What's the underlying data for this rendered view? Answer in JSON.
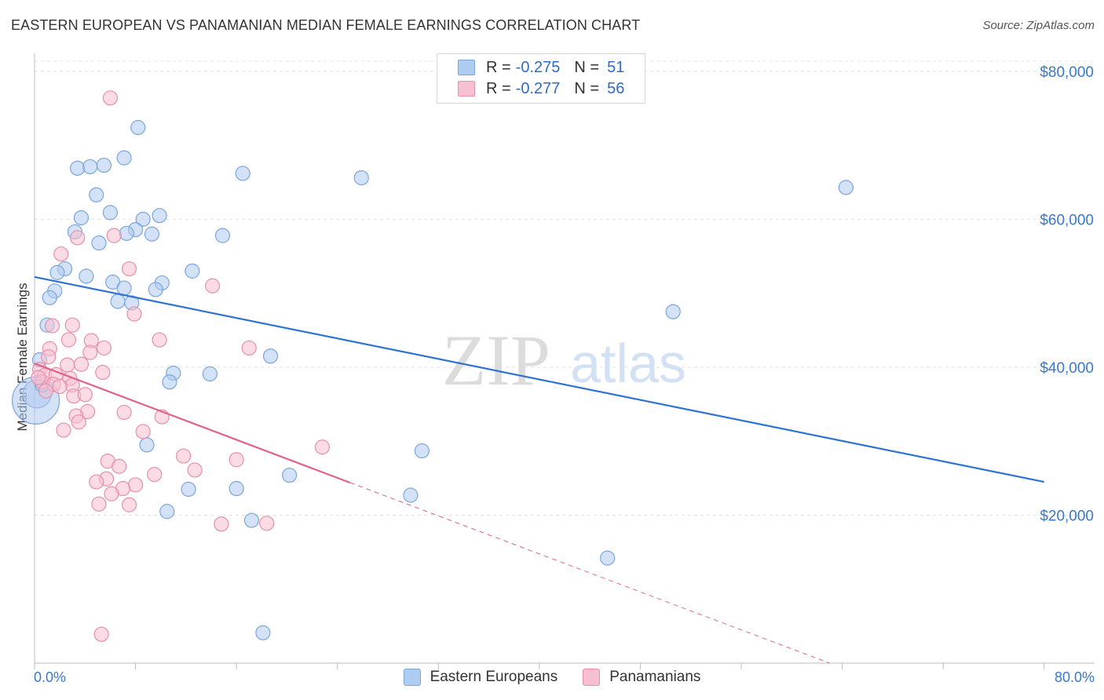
{
  "header": {
    "title": "EASTERN EUROPEAN VS PANAMANIAN MEDIAN FEMALE EARNINGS CORRELATION CHART",
    "source": "Source: ZipAtlas.com"
  },
  "legend_top": {
    "rows": [
      {
        "r_label": "R =",
        "r_value": "-0.275",
        "n_label": "N =",
        "n_value": "51"
      },
      {
        "r_label": "R =",
        "r_value": "-0.277",
        "n_label": "N =",
        "n_value": "56"
      }
    ]
  },
  "legend_bottom": {
    "items": [
      "Eastern Europeans",
      "Panamanians"
    ]
  },
  "colors": {
    "blue_fill": "#aecbf0",
    "blue_stroke": "#7aa6dd",
    "blue_line": "#2f73d0",
    "pink_fill": "#f7c0d0",
    "pink_stroke": "#e88fab",
    "pink_line": "#e0628d",
    "axis_text": "#3a78c9",
    "grid": "#e3e3e3",
    "watermark": "#dcdcdc"
  },
  "chart_data": {
    "type": "scatter",
    "title": "EASTERN EUROPEAN VS PANAMANIAN MEDIAN FEMALE EARNINGS CORRELATION CHART",
    "xlabel": "",
    "ylabel": "Median Female Earnings",
    "xlim": [
      0,
      84
    ],
    "ylim": [
      0,
      82000
    ],
    "x_tick_labels": [
      {
        "value": 0,
        "label": "0.0%"
      },
      {
        "value": 80,
        "label": "80.0%"
      }
    ],
    "y_tick_labels": [
      {
        "value": 20000,
        "label": "$20,000"
      },
      {
        "value": 40000,
        "label": "$40,000"
      },
      {
        "value": 60000,
        "label": "$60,000"
      },
      {
        "value": 80000,
        "label": "$80,000"
      }
    ],
    "watermark": {
      "zip": "ZIP",
      "atlas": "atlas"
    },
    "series": [
      {
        "name": "Eastern Europeans",
        "color": "blue",
        "trend": {
          "x": [
            0,
            80
          ],
          "y": [
            52200,
            24500
          ],
          "dashed_to": null
        },
        "points": [
          [
            8.2,
            72400
          ],
          [
            7.1,
            68300
          ],
          [
            3.4,
            66900
          ],
          [
            4.4,
            67100
          ],
          [
            5.5,
            67300
          ],
          [
            16.5,
            66200
          ],
          [
            25.9,
            65600
          ],
          [
            64.3,
            64300
          ],
          [
            4.9,
            63300
          ],
          [
            6.0,
            60900
          ],
          [
            3.7,
            60200
          ],
          [
            8.6,
            60000
          ],
          [
            9.9,
            60500
          ],
          [
            8.0,
            58600
          ],
          [
            3.2,
            58300
          ],
          [
            7.3,
            58100
          ],
          [
            9.3,
            58000
          ],
          [
            14.9,
            57800
          ],
          [
            5.1,
            56800
          ],
          [
            2.4,
            53300
          ],
          [
            12.5,
            53000
          ],
          [
            1.8,
            52800
          ],
          [
            4.1,
            52300
          ],
          [
            6.2,
            51500
          ],
          [
            10.1,
            51400
          ],
          [
            7.1,
            50700
          ],
          [
            9.6,
            50500
          ],
          [
            1.6,
            50300
          ],
          [
            1.2,
            49400
          ],
          [
            6.6,
            48900
          ],
          [
            7.7,
            48700
          ],
          [
            50.6,
            47500
          ],
          [
            1.0,
            45700
          ],
          [
            18.7,
            41500
          ],
          [
            0.4,
            41000
          ],
          [
            11.0,
            39200
          ],
          [
            13.9,
            39100
          ],
          [
            10.7,
            38000
          ],
          [
            0.2,
            36400
          ],
          [
            0.1,
            35500
          ],
          [
            8.9,
            29500
          ],
          [
            30.7,
            28700
          ],
          [
            20.2,
            25400
          ],
          [
            12.2,
            23500
          ],
          [
            16.0,
            23600
          ],
          [
            29.8,
            22700
          ],
          [
            10.5,
            20500
          ],
          [
            17.2,
            19300
          ],
          [
            45.4,
            14200
          ],
          [
            18.1,
            4100
          ],
          [
            0.6,
            37600
          ]
        ],
        "sizes": {
          "39": 30,
          "38": 18
        }
      },
      {
        "name": "Panamanians",
        "color": "pink",
        "trend": {
          "x": [
            0,
            25
          ],
          "y": [
            40500,
            24400
          ],
          "dashed_to": [
            63,
            0
          ]
        },
        "points": [
          [
            6.0,
            76400
          ],
          [
            6.3,
            57800
          ],
          [
            3.4,
            57500
          ],
          [
            2.1,
            55300
          ],
          [
            7.5,
            53300
          ],
          [
            14.1,
            51000
          ],
          [
            7.9,
            47200
          ],
          [
            1.4,
            45600
          ],
          [
            3.0,
            45700
          ],
          [
            2.7,
            43700
          ],
          [
            4.5,
            43600
          ],
          [
            9.9,
            43700
          ],
          [
            17.0,
            42600
          ],
          [
            5.5,
            42600
          ],
          [
            1.2,
            42500
          ],
          [
            4.4,
            42000
          ],
          [
            2.6,
            40300
          ],
          [
            3.7,
            40400
          ],
          [
            0.4,
            39700
          ],
          [
            5.4,
            39300
          ],
          [
            0.8,
            38900
          ],
          [
            1.7,
            39000
          ],
          [
            2.8,
            38500
          ],
          [
            0.6,
            38000
          ],
          [
            1.5,
            37700
          ],
          [
            3.0,
            37600
          ],
          [
            0.9,
            36800
          ],
          [
            3.1,
            36100
          ],
          [
            4.2,
            34000
          ],
          [
            7.1,
            33900
          ],
          [
            3.3,
            33400
          ],
          [
            10.1,
            33300
          ],
          [
            3.5,
            32600
          ],
          [
            2.3,
            31500
          ],
          [
            8.6,
            31300
          ],
          [
            22.8,
            29200
          ],
          [
            11.8,
            28000
          ],
          [
            16.0,
            27500
          ],
          [
            5.8,
            27300
          ],
          [
            6.7,
            26600
          ],
          [
            12.7,
            26100
          ],
          [
            9.5,
            25500
          ],
          [
            5.7,
            24900
          ],
          [
            4.9,
            24500
          ],
          [
            8.0,
            24100
          ],
          [
            7.0,
            23600
          ],
          [
            5.1,
            21500
          ],
          [
            7.5,
            21400
          ],
          [
            14.8,
            18800
          ],
          [
            18.4,
            18900
          ],
          [
            5.3,
            3900
          ],
          [
            0.3,
            38600
          ],
          [
            2.0,
            37400
          ],
          [
            1.1,
            41400
          ],
          [
            6.1,
            22900
          ],
          [
            4.0,
            36300
          ]
        ],
        "sizes": {}
      }
    ]
  }
}
